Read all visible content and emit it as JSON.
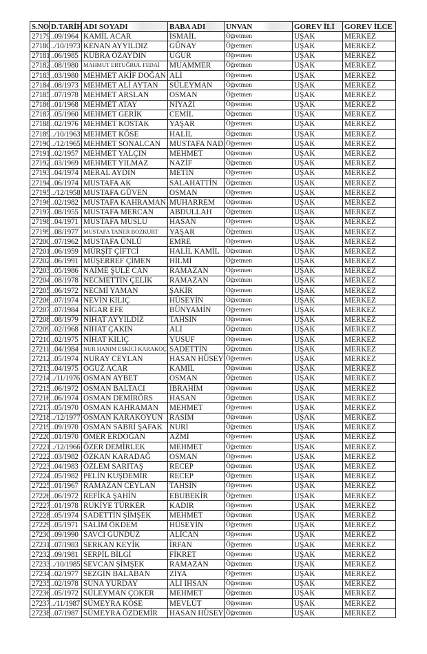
{
  "columns": [
    "S.NO",
    "D.TARİHİ",
    "ADI SOYADI",
    "BABA ADI",
    "UNVAN",
    "GOREV İLİ",
    "GOREV İLCE"
  ],
  "rows": [
    [
      "27179",
      "..09/1964",
      "KAMİL ACAR",
      "İSMAİL",
      "Öğretmen",
      "UŞAK",
      "MERKEZ"
    ],
    [
      "27180",
      "../10/1973",
      "KENAN AYYILDIZ",
      "GÜNAY",
      "Öğretmen",
      "UŞAK",
      "MERKEZ"
    ],
    [
      "27181",
      "..06/1985",
      "KÜBRA ÖZAYDIN",
      "UĞUR",
      "Öğretmen",
      "UŞAK",
      "MERKEZ"
    ],
    [
      "27182",
      "..08/1980",
      "MAHMUT ERTUĞRUL FEDAİ",
      "MUAMMER",
      "Öğretmen",
      "UŞAK",
      "MERKEZ"
    ],
    [
      "27183",
      "..03/1980",
      "MEHMET AKİF DOĞAN",
      "ALİ",
      "Öğretmen",
      "UŞAK",
      "MERKEZ"
    ],
    [
      "27184",
      "..08/1973",
      "MEHMET ALİ AYTAN",
      "SÜLEYMAN",
      "Öğretmen",
      "UŞAK",
      "MERKEZ"
    ],
    [
      "27185",
      "..07/1978",
      "MEHMET ARSLAN",
      "OSMAN",
      "Öğretmen",
      "UŞAK",
      "MERKEZ"
    ],
    [
      "27186",
      "..01/1968",
      "MEHMET ATAY",
      "NİYAZİ",
      "Öğretmen",
      "UŞAK",
      "MERKEZ"
    ],
    [
      "27187",
      "..05/1960",
      "MEHMET GERİK",
      "CEMİL",
      "Öğretmen",
      "UŞAK",
      "MERKEZ"
    ],
    [
      "27188",
      "..02/1976",
      "MEHMET KOSTAK",
      "YAŞAR",
      "Öğretmen",
      "UŞAK",
      "MERKEZ"
    ],
    [
      "27189",
      "../10/1963",
      "MEHMET KÖSE",
      "HALİL",
      "Öğretmen",
      "UŞAK",
      "MERKEZ"
    ],
    [
      "27190",
      "../12/1965",
      "MEHMET SONALCAN",
      "MUSTAFA NADİ",
      "Öğretmen",
      "UŞAK",
      "MERKEZ"
    ],
    [
      "27191",
      "..02/1957",
      "MEHMET YALÇIN",
      "MEHMET",
      "Öğretmen",
      "UŞAK",
      "MERKEZ"
    ],
    [
      "27192",
      "..03/1969",
      "MEHMET YILMAZ",
      "NAZİF",
      "Öğretmen",
      "UŞAK",
      "MERKEZ"
    ],
    [
      "27193",
      "..04/1974",
      "MERAL AYDIN",
      "METİN",
      "Öğretmen",
      "UŞAK",
      "MERKEZ"
    ],
    [
      "27194",
      "..06/1974",
      "MUSTAFA AK",
      "SALAHATTİN",
      "Öğretmen",
      "UŞAK",
      "MERKEZ"
    ],
    [
      "27195",
      "../12/1958",
      "MUSTAFA GÜVEN",
      "OSMAN",
      "Öğretmen",
      "UŞAK",
      "MERKEZ"
    ],
    [
      "27196",
      "..02/1982",
      "MUSTAFA KAHRAMAN",
      "MUHARREM",
      "Öğretmen",
      "UŞAK",
      "MERKEZ"
    ],
    [
      "27197",
      "..08/1955",
      "MUSTAFA MERCAN",
      "ABDULLAH",
      "Öğretmen",
      "UŞAK",
      "MERKEZ"
    ],
    [
      "27198",
      "..04/1971",
      "MUSTAFA MUSLU",
      "HASAN",
      "Öğretmen",
      "UŞAK",
      "MERKEZ"
    ],
    [
      "27199",
      "..08/1977",
      "MUSTAFA TANER BOZKURT",
      "YAŞAR",
      "Öğretmen",
      "UŞAK",
      "MERKEZ"
    ],
    [
      "27200",
      "..07/1962",
      "MUSTAFA ÜNLÜ",
      "EMRE",
      "Öğretmen",
      "UŞAK",
      "MERKEZ"
    ],
    [
      "27201",
      "..06/1959",
      "MÜRŞİT ÇİFTCİ",
      "HALİL KAMİL",
      "Öğretmen",
      "UŞAK",
      "MERKEZ"
    ],
    [
      "27202",
      "..06/1991",
      "MÜŞERREF ÇİMEN",
      "HİLMİ",
      "Öğretmen",
      "UŞAK",
      "MERKEZ"
    ],
    [
      "27203",
      "..05/1986",
      "NAİME ŞULE CAN",
      "RAMAZAN",
      "Öğretmen",
      "UŞAK",
      "MERKEZ"
    ],
    [
      "27204",
      "..08/1978",
      "NECMETTİN ÇELİK",
      "RAMAZAN",
      "Öğretmen",
      "UŞAK",
      "MERKEZ"
    ],
    [
      "27205",
      "..06/1972",
      "NECMİ YAMAN",
      "ŞAKİR",
      "Öğretmen",
      "UŞAK",
      "MERKEZ"
    ],
    [
      "27206",
      "..07/1974",
      "NEVİN KILIÇ",
      "HÜSEYİN",
      "Öğretmen",
      "UŞAK",
      "MERKEZ"
    ],
    [
      "27207",
      "..07/1984",
      "NİGAR EFE",
      "BÜNYAMİN",
      "Öğretmen",
      "UŞAK",
      "MERKEZ"
    ],
    [
      "27208",
      "..08/1979",
      "NİHAT AYYILDIZ",
      "TAHSİN",
      "Öğretmen",
      "UŞAK",
      "MERKEZ"
    ],
    [
      "27209",
      "..02/1968",
      "NİHAT ÇAKIN",
      "ALİ",
      "Öğretmen",
      "UŞAK",
      "MERKEZ"
    ],
    [
      "27210",
      "..02/1975",
      "NİHAT KILIÇ",
      "YUSUF",
      "Öğretmen",
      "UŞAK",
      "MERKEZ"
    ],
    [
      "27211",
      "..04/1984",
      "NUR HANIM ESKİCİ KARAKOÇ",
      "SADETTİN",
      "Öğretmen",
      "UŞAK",
      "MERKEZ"
    ],
    [
      "27212",
      "..05/1974",
      "NURAY CEYLAN",
      "HASAN HÜSEYİN",
      "Öğretmen",
      "UŞAK",
      "MERKEZ"
    ],
    [
      "27213",
      "..04/1975",
      "OĞUZ ACAR",
      "KAMİL",
      "Öğretmen",
      "UŞAK",
      "MERKEZ"
    ],
    [
      "27214",
      "../11/1976",
      "OSMAN AYBET",
      "OSMAN",
      "Öğretmen",
      "UŞAK",
      "MERKEZ"
    ],
    [
      "27215",
      "..06/1972",
      "OSMAN BALTACI",
      "İBRAHİM",
      "Öğretmen",
      "UŞAK",
      "MERKEZ"
    ],
    [
      "27216",
      "..06/1974",
      "OSMAN DEMİRÖRS",
      "HASAN",
      "Öğretmen",
      "UŞAK",
      "MERKEZ"
    ],
    [
      "27217",
      "..05/1970",
      "OSMAN KAHRAMAN",
      "MEHMET",
      "Öğretmen",
      "UŞAK",
      "MERKEZ"
    ],
    [
      "27218",
      "../12/1977",
      "OSMAN KARAKOYUN",
      "RASİM",
      "Öğretmen",
      "UŞAK",
      "MERKEZ"
    ],
    [
      "27219",
      "..09/1970",
      "OSMAN SABRİ ŞAFAK",
      "NURİ",
      "Öğretmen",
      "UŞAK",
      "MERKEZ"
    ],
    [
      "27220",
      "..01/1970",
      "ÖMER ERDOĞAN",
      "AZMİ",
      "Öğretmen",
      "UŞAK",
      "MERKEZ"
    ],
    [
      "27221",
      "../12/1966",
      "ÖZER DEMİRLEK",
      "MEHMET",
      "Öğretmen",
      "UŞAK",
      "MERKEZ"
    ],
    [
      "27222",
      "..03/1982",
      "ÖZKAN KARADAĞ",
      "OSMAN",
      "Öğretmen",
      "UŞAK",
      "MERKEZ"
    ],
    [
      "27223",
      "..04/1983",
      "ÖZLEM SARITAŞ",
      "RECEP",
      "Öğretmen",
      "UŞAK",
      "MERKEZ"
    ],
    [
      "27224",
      "..05/1982",
      "PELİN KUŞDEMİR",
      "RECEP",
      "Öğretmen",
      "UŞAK",
      "MERKEZ"
    ],
    [
      "27225",
      "..01/1967",
      "RAMAZAN CEYLAN",
      "TAHSİN",
      "Öğretmen",
      "UŞAK",
      "MERKEZ"
    ],
    [
      "27226",
      "..06/1972",
      "REFİKA ŞAHİN",
      "EBUBEKİR",
      "Öğretmen",
      "UŞAK",
      "MERKEZ"
    ],
    [
      "27227",
      "..01/1978",
      "RUKİYE TÜRKER",
      "KADIR",
      "Öğretmen",
      "UŞAK",
      "MERKEZ"
    ],
    [
      "27228",
      "..05/1974",
      "SADETTİN ŞİMŞEK",
      "MEHMET",
      "Öğretmen",
      "UŞAK",
      "MERKEZ"
    ],
    [
      "27229",
      "..05/1971",
      "SALİM ÖKDEM",
      "HÜSEYİN",
      "Öğretmen",
      "UŞAK",
      "MERKEZ"
    ],
    [
      "27230",
      "..09/1990",
      "SAVCI GÜNDÜZ",
      "ALİCAN",
      "Öğretmen",
      "UŞAK",
      "MERKEZ"
    ],
    [
      "27231",
      "..07/1983",
      "SERKAN KEYİK",
      "İRFAN",
      "Öğretmen",
      "UŞAK",
      "MERKEZ"
    ],
    [
      "27232",
      "..09/1981",
      "SERPİL BİLGİ",
      "FİKRET",
      "Öğretmen",
      "UŞAK",
      "MERKEZ"
    ],
    [
      "27233",
      "../10/1985",
      "SEVCAN ŞİMŞEK",
      "RAMAZAN",
      "Öğretmen",
      "UŞAK",
      "MERKEZ"
    ],
    [
      "27234",
      "..02/1977",
      "SEZGİN BALABAN",
      "ZİYA",
      "Öğretmen",
      "UŞAK",
      "MERKEZ"
    ],
    [
      "27235",
      "..02/1978",
      "SUNA YURDAY",
      "ALİ İHSAN",
      "Öğretmen",
      "UŞAK",
      "MERKEZ"
    ],
    [
      "27236",
      "..05/1972",
      "SÜLEYMAN ÇOKER",
      "MEHMET",
      "Öğretmen",
      "UŞAK",
      "MERKEZ"
    ],
    [
      "27237",
      "../11/1987",
      "SÜMEYRA KÖSE",
      "MEVLÜT",
      "Öğretmen",
      "UŞAK",
      "MERKEZ"
    ],
    [
      "27238",
      "..07/1987",
      "SÜMEYRA ÖZDEMİR",
      "HASAN HÜSEYİN",
      "Öğretmen",
      "UŞAK",
      "MERKEZ"
    ]
  ]
}
